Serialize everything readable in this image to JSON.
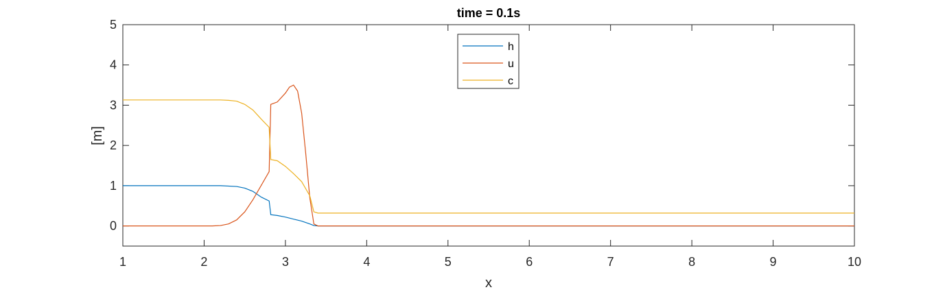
{
  "chart_data": {
    "type": "line",
    "title": "time = 0.1s",
    "xlabel": "x",
    "ylabel": "[m]",
    "xlim": [
      1,
      10
    ],
    "ylim": [
      -0.5,
      5
    ],
    "xticks": [
      1,
      2,
      3,
      4,
      5,
      6,
      7,
      8,
      9,
      10
    ],
    "yticks": [
      0,
      1,
      2,
      3,
      4,
      5
    ],
    "grid": false,
    "legend_position": "top-center",
    "series": [
      {
        "name": "h",
        "color": "#0072BD",
        "x": [
          1,
          2.2,
          2.4,
          2.5,
          2.6,
          2.7,
          2.8,
          2.82,
          2.9,
          3.0,
          3.1,
          3.2,
          3.3,
          3.35,
          3.4,
          10
        ],
        "y": [
          1.0,
          1.0,
          0.98,
          0.94,
          0.86,
          0.72,
          0.62,
          0.28,
          0.26,
          0.22,
          0.17,
          0.12,
          0.05,
          0.01,
          0.0,
          0.0
        ]
      },
      {
        "name": "u",
        "color": "#D95319",
        "x": [
          1,
          2.1,
          2.2,
          2.3,
          2.4,
          2.5,
          2.6,
          2.7,
          2.8,
          2.82,
          2.9,
          3.0,
          3.05,
          3.1,
          3.15,
          3.2,
          3.25,
          3.3,
          3.35,
          3.4,
          10
        ],
        "y": [
          0.0,
          0.0,
          0.01,
          0.05,
          0.15,
          0.35,
          0.65,
          1.0,
          1.35,
          3.02,
          3.08,
          3.3,
          3.45,
          3.5,
          3.35,
          2.8,
          1.8,
          0.7,
          0.05,
          0.0,
          0.0
        ]
      },
      {
        "name": "c",
        "color": "#EDB120",
        "x": [
          1,
          2.2,
          2.3,
          2.4,
          2.5,
          2.6,
          2.7,
          2.8,
          2.82,
          2.9,
          3.0,
          3.1,
          3.2,
          3.3,
          3.35,
          3.4,
          10
        ],
        "y": [
          3.13,
          3.13,
          3.12,
          3.1,
          3.02,
          2.88,
          2.66,
          2.45,
          1.65,
          1.62,
          1.48,
          1.3,
          1.1,
          0.75,
          0.35,
          0.32,
          0.32
        ]
      }
    ]
  }
}
